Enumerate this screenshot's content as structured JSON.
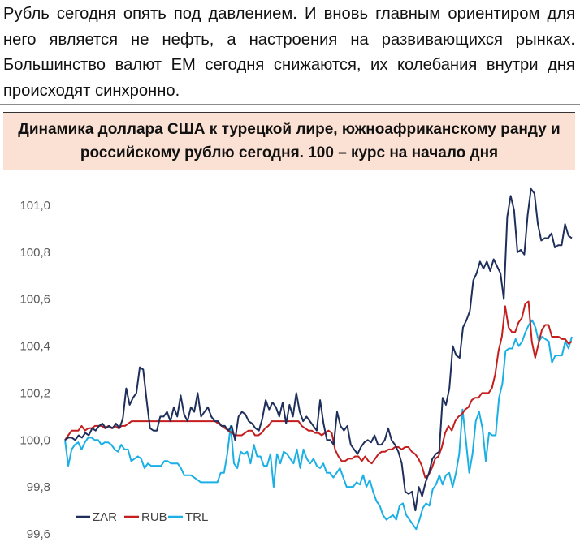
{
  "intro_text": "Рубль сегодня опять под давлением. И вновь главным ориентиром для него является не нефть, а настроения на развивающихся рынках. Большинство валют ЕМ сегодня снижаются, их колебания внутри дня происходят синхронно.",
  "chart_data": {
    "type": "line",
    "title": "Динамика доллара США к турецкой лире, южноафриканскому ранду и российскому рублю сегодня. 100 – курс на начало дня",
    "xlabel": "",
    "ylabel": "",
    "ylim": [
      99.6,
      101.0
    ],
    "yticks": [
      "101,0",
      "100,8",
      "100,6",
      "100,4",
      "100,2",
      "100,0",
      "99,8",
      "99,6"
    ],
    "ytick_values": [
      101.0,
      100.8,
      100.6,
      100.4,
      100.2,
      100.0,
      99.8,
      99.6
    ],
    "grid": false,
    "legend_position": "bottom-left",
    "series": [
      {
        "name": "ZAR",
        "color": "#1f2f5c",
        "values": [
          100.0,
          100.01,
          100.01,
          100.0,
          100.02,
          100.01,
          100.03,
          100.02,
          100.05,
          100.04,
          100.06,
          100.07,
          100.05,
          100.06,
          100.05,
          100.07,
          100.05,
          100.09,
          100.22,
          100.15,
          100.18,
          100.2,
          100.31,
          100.3,
          100.17,
          100.05,
          100.04,
          100.04,
          100.1,
          100.1,
          100.12,
          100.08,
          100.14,
          100.1,
          100.19,
          100.11,
          100.08,
          100.14,
          100.12,
          100.2,
          100.1,
          100.12,
          100.14,
          100.1,
          100.08,
          100.08,
          100.06,
          100.06,
          100.04,
          100.06,
          100.0,
          100.1,
          100.12,
          100.11,
          100.08,
          100.07,
          100.05,
          100.04,
          100.09,
          100.17,
          100.13,
          100.16,
          100.14,
          100.1,
          100.16,
          100.07,
          100.15,
          100.1,
          100.2,
          100.12,
          100.08,
          100.1,
          100.08,
          100.06,
          100.04,
          100.17,
          100.07,
          100.0,
          100.0,
          99.98,
          100.12,
          100.06,
          100.04,
          100.06,
          99.98,
          99.96,
          99.94,
          99.97,
          99.99,
          100.0,
          99.99,
          100.02,
          99.98,
          99.98,
          100.0,
          100.05,
          100.0,
          99.98,
          99.95,
          99.9,
          99.78,
          99.77,
          99.78,
          99.7,
          99.8,
          99.76,
          99.82,
          99.86,
          99.92,
          99.94,
          99.95,
          100.18,
          100.15,
          100.22,
          100.4,
          100.36,
          100.35,
          100.48,
          100.51,
          100.55,
          100.68,
          100.71,
          100.76,
          100.73,
          100.76,
          100.72,
          100.77,
          100.74,
          100.71,
          100.6,
          100.95,
          101.04,
          100.98,
          100.8,
          100.81,
          100.79,
          100.96,
          101.07,
          101.05,
          100.92,
          100.85,
          100.86,
          100.86,
          100.88,
          100.82,
          100.83,
          100.83,
          100.92,
          100.87,
          100.86
        ]
      },
      {
        "name": "RUB",
        "color": "#c41e1e",
        "values": [
          100.0,
          100.02,
          100.04,
          100.04,
          100.04,
          100.06,
          100.04,
          100.05,
          100.05,
          100.06,
          100.06,
          100.06,
          100.05,
          100.06,
          100.05,
          100.06,
          100.05,
          100.06,
          100.06,
          100.07,
          100.08,
          100.08,
          100.08,
          100.08,
          100.08,
          100.08,
          100.08,
          100.08,
          100.08,
          100.08,
          100.08,
          100.08,
          100.08,
          100.08,
          100.08,
          100.08,
          100.08,
          100.08,
          100.08,
          100.08,
          100.08,
          100.08,
          100.08,
          100.08,
          100.08,
          100.08,
          100.07,
          100.06,
          100.05,
          100.04,
          100.03,
          100.02,
          100.02,
          100.02,
          100.03,
          100.04,
          100.04,
          100.02,
          100.02,
          100.03,
          100.05,
          100.06,
          100.08,
          100.08,
          100.08,
          100.08,
          100.08,
          100.08,
          100.08,
          100.08,
          100.08,
          100.06,
          100.05,
          100.04,
          100.04,
          100.03,
          100.03,
          100.02,
          100.03,
          100.04,
          100.03,
          99.96,
          99.93,
          99.91,
          99.91,
          99.92,
          99.92,
          99.93,
          99.93,
          99.91,
          99.93,
          99.91,
          99.9,
          99.92,
          99.94,
          99.95,
          99.95,
          99.96,
          99.96,
          99.97,
          99.97,
          99.96,
          99.97,
          99.97,
          99.95,
          99.94,
          99.92,
          99.89,
          99.84,
          99.85,
          99.88,
          99.92,
          99.93,
          99.97,
          100.03,
          100.06,
          100.04,
          100.08,
          100.1,
          100.11,
          100.13,
          100.14,
          100.17,
          100.18,
          100.18,
          100.2,
          100.2,
          100.2,
          100.22,
          100.28,
          100.38,
          100.44,
          100.57,
          100.48,
          100.46,
          100.46,
          100.5,
          100.52,
          100.58,
          100.59,
          100.42,
          100.35,
          100.41,
          100.47,
          100.49,
          100.49,
          100.44,
          100.44,
          100.44,
          100.43,
          100.43,
          100.41,
          100.42
        ]
      },
      {
        "name": "TRL",
        "color": "#1ab0e6",
        "values": [
          100.0,
          99.89,
          99.96,
          99.98,
          99.99,
          99.96,
          99.99,
          100.01,
          100.01,
          100.0,
          100.0,
          99.98,
          99.99,
          99.99,
          99.98,
          99.96,
          99.95,
          99.98,
          99.96,
          99.96,
          99.91,
          99.92,
          99.93,
          99.92,
          99.88,
          99.9,
          99.89,
          99.89,
          99.89,
          99.89,
          99.91,
          99.91,
          99.9,
          99.9,
          99.9,
          99.88,
          99.85,
          99.85,
          99.85,
          99.84,
          99.83,
          99.82,
          99.82,
          99.82,
          99.82,
          99.82,
          99.82,
          99.86,
          99.86,
          99.94,
          100.06,
          99.9,
          99.88,
          99.95,
          99.94,
          99.95,
          99.9,
          99.98,
          99.93,
          99.93,
          99.89,
          99.89,
          99.94,
          99.8,
          99.94,
          99.9,
          99.95,
          99.94,
          99.92,
          99.9,
          99.96,
          99.88,
          99.96,
          99.92,
          99.9,
          99.92,
          99.89,
          99.88,
          99.9,
          99.86,
          99.86,
          99.84,
          99.86,
          99.88,
          99.84,
          99.8,
          99.8,
          99.8,
          99.82,
          99.81,
          99.85,
          99.8,
          99.83,
          99.78,
          99.74,
          99.72,
          99.68,
          99.66,
          99.67,
          99.68,
          99.66,
          99.72,
          99.73,
          99.68,
          99.66,
          99.64,
          99.62,
          99.66,
          99.71,
          99.73,
          99.72,
          99.79,
          99.81,
          99.85,
          99.81,
          99.85,
          99.86,
          99.8,
          99.86,
          99.94,
          100.13,
          100.0,
          99.86,
          99.94,
          100.08,
          100.12,
          100.05,
          99.91,
          100.03,
          100.02,
          100.02,
          100.18,
          100.24,
          100.38,
          100.39,
          100.39,
          100.43,
          100.4,
          100.42,
          100.46,
          100.49,
          100.51,
          100.48,
          100.42,
          100.44,
          100.43,
          100.42,
          100.33,
          100.36,
          100.36,
          100.36,
          100.42,
          100.39,
          100.44
        ]
      }
    ]
  }
}
